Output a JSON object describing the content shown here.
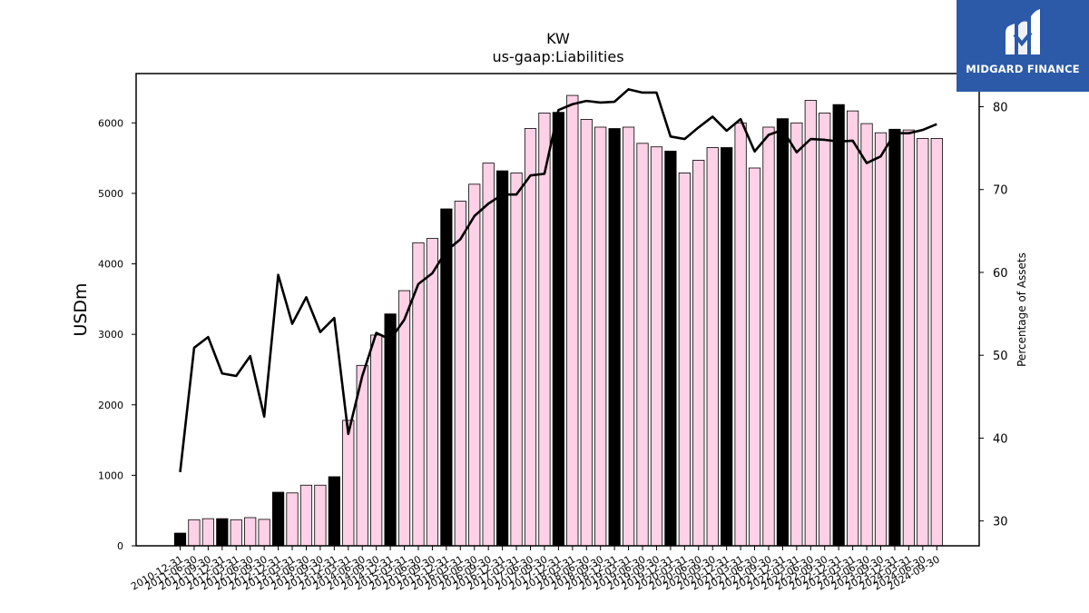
{
  "logo": {
    "name": "MIDGARD FINANCE",
    "icon": "midgard-m-logo-icon"
  },
  "chart_data": {
    "type": "bar",
    "title": "KW",
    "subtitle": "us-gaap:Liabilities",
    "ylabel": "USDm",
    "y2label": "Percentage of Assets",
    "ylim": [
      0,
      6700
    ],
    "y2lim": [
      27,
      84
    ],
    "yticks": [
      0,
      1000,
      2000,
      3000,
      4000,
      5000,
      6000
    ],
    "y2ticks": [
      30,
      40,
      50,
      60,
      70,
      80
    ],
    "grid": false,
    "colors": {
      "bar": "#ffd1e6",
      "bar_highlight": "#000000",
      "line": "#000000",
      "edge": "#000000"
    },
    "categories": [
      "2010-12-31",
      "2011-06-30",
      "2011-09-30",
      "2011-12-31",
      "2012-03-31",
      "2012-06-30",
      "2012-09-30",
      "2012-12-31",
      "2013-03-31",
      "2013-06-30",
      "2013-09-30",
      "2013-12-31",
      "2014-03-31",
      "2014-06-30",
      "2014-09-30",
      "2014-12-31",
      "2015-03-31",
      "2015-06-30",
      "2015-09-30",
      "2015-12-31",
      "2016-03-31",
      "2016-06-30",
      "2016-09-30",
      "2016-12-31",
      "2017-03-31",
      "2017-06-30",
      "2017-09-30",
      "2017-12-31",
      "2018-03-31",
      "2018-06-30",
      "2018-09-30",
      "2018-12-31",
      "2019-03-31",
      "2019-06-30",
      "2019-09-30",
      "2019-12-31",
      "2020-03-31",
      "2020-06-30",
      "2020-09-30",
      "2020-12-31",
      "2021-03-31",
      "2021-06-30",
      "2021-09-30",
      "2021-12-31",
      "2022-03-31",
      "2022-06-30",
      "2022-09-30",
      "2022-12-31",
      "2023-03-31",
      "2023-06-30",
      "2023-09-30",
      "2023-12-31",
      "2024-03-31",
      "2024-06-30",
      "2024-09-30"
    ],
    "series": [
      {
        "type": "bar",
        "values": [
          180,
          370,
          385,
          385,
          370,
          400,
          375,
          760,
          750,
          860,
          860,
          980,
          1780,
          2560,
          2990,
          3290,
          3620,
          4300,
          4360,
          4780,
          4890,
          5130,
          5430,
          5320,
          5290,
          5920,
          6140,
          6150,
          6390,
          6050,
          5940,
          5920,
          5940,
          5710,
          5660,
          5600,
          5290,
          5470,
          5650,
          5650,
          6000,
          5360,
          5940,
          6060,
          6000,
          6320,
          6140,
          6260,
          6170,
          5990,
          5860,
          5910,
          5900,
          5780,
          5780
        ],
        "highlight": [
          true,
          false,
          false,
          true,
          false,
          false,
          false,
          true,
          false,
          false,
          false,
          true,
          false,
          false,
          false,
          true,
          false,
          false,
          false,
          true,
          false,
          false,
          false,
          true,
          false,
          false,
          false,
          true,
          false,
          false,
          false,
          true,
          false,
          false,
          false,
          true,
          false,
          false,
          false,
          true,
          false,
          false,
          false,
          true,
          false,
          false,
          false,
          true,
          false,
          false,
          false,
          true,
          false,
          false,
          false
        ]
      },
      {
        "type": "line",
        "axis": "right",
        "values": [
          35.9,
          50.9,
          52.2,
          47.8,
          47.5,
          49.9,
          42.6,
          59.7,
          53.8,
          57.0,
          52.8,
          54.5,
          40.5,
          47.5,
          52.7,
          51.9,
          54.3,
          58.6,
          59.9,
          62.6,
          64.0,
          66.8,
          68.3,
          69.4,
          69.4,
          71.7,
          71.9,
          79.6,
          80.3,
          80.7,
          80.5,
          80.6,
          82.1,
          81.7,
          81.7,
          76.4,
          76.1,
          77.5,
          78.8,
          77.1,
          78.5,
          74.6,
          76.6,
          77.2,
          74.5,
          76.1,
          76.0,
          75.8,
          75.9,
          73.2,
          74.0,
          76.8,
          76.8,
          77.2,
          77.9
        ]
      }
    ]
  }
}
